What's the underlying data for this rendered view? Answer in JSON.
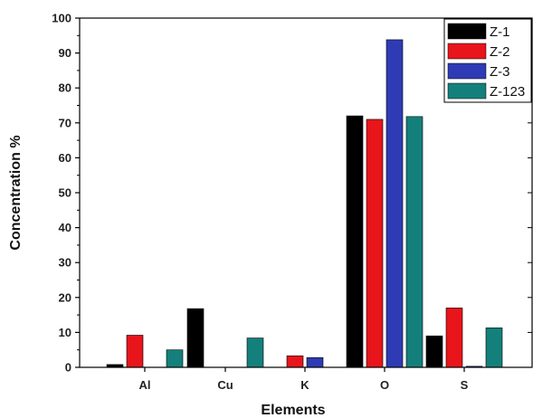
{
  "chart_data": {
    "type": "bar",
    "title": "",
    "xlabel": "Elements",
    "ylabel": "Concentration %",
    "ylim": [
      0,
      100
    ],
    "yticks": [
      0,
      10,
      20,
      30,
      40,
      50,
      60,
      70,
      80,
      90,
      100
    ],
    "categories": [
      "Al",
      "Cu",
      "K",
      "O",
      "S"
    ],
    "legend_position": "top-right",
    "grid": false,
    "series": [
      {
        "name": "Z-1",
        "color": "#000000",
        "values": [
          0.8,
          16.8,
          0,
          72.0,
          9.0
        ]
      },
      {
        "name": "Z-2",
        "color": "#e8151b",
        "values": [
          9.2,
          0,
          3.3,
          71.0,
          17.0
        ]
      },
      {
        "name": "Z-3",
        "color": "#2e3bb5",
        "values": [
          0,
          0,
          2.8,
          93.8,
          0.3
        ]
      },
      {
        "name": "Z-123",
        "color": "#14807c",
        "values": [
          5.0,
          8.4,
          0,
          71.8,
          11.3
        ]
      }
    ]
  }
}
